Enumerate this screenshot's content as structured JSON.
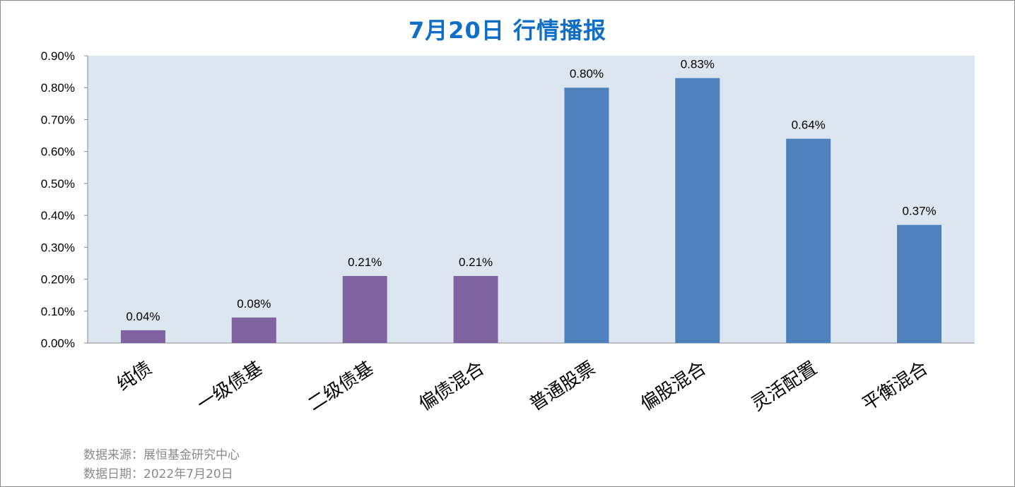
{
  "chart_data": {
    "type": "bar",
    "title": "7月20日  行情播报",
    "categories": [
      "纯债",
      "一级债基",
      "二级债基",
      "偏债混合",
      "普通股票",
      "偏股混合",
      "灵活配置",
      "平衡混合"
    ],
    "values": [
      0.04,
      0.08,
      0.21,
      0.21,
      0.8,
      0.83,
      0.64,
      0.37
    ],
    "data_labels": [
      "0.04%",
      "0.08%",
      "0.21%",
      "0.21%",
      "0.80%",
      "0.83%",
      "0.64%",
      "0.37%"
    ],
    "bar_colors": [
      "#8064a2",
      "#8064a2",
      "#8064a2",
      "#8064a2",
      "#4f81bd",
      "#4f81bd",
      "#4f81bd",
      "#4f81bd"
    ],
    "ylim": [
      0,
      0.9
    ],
    "yticks": [
      0,
      0.1,
      0.2,
      0.3,
      0.4,
      0.5,
      0.6,
      0.7,
      0.8,
      0.9
    ],
    "ytick_labels": [
      "0.00%",
      "0.10%",
      "0.20%",
      "0.30%",
      "0.40%",
      "0.50%",
      "0.60%",
      "0.70%",
      "0.80%",
      "0.90%"
    ],
    "xlabel": "",
    "ylabel": "",
    "plot_background": "#dce6f1",
    "grid": false,
    "legend": "none"
  },
  "footer": {
    "source": "数据来源：展恒基金研究中心",
    "date": "数据日期：2022年7月20日"
  }
}
